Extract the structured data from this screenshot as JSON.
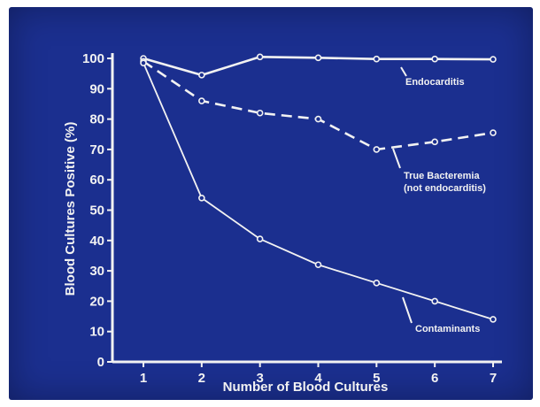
{
  "chart_data": {
    "type": "line",
    "title": "",
    "xlabel": "Number of Blood Cultures",
    "ylabel": "Blood Cultures Positive (%)",
    "x": [
      1,
      2,
      3,
      4,
      5,
      6,
      7
    ],
    "xlim": [
      1,
      7
    ],
    "ylim": [
      0,
      100
    ],
    "yticks": [
      "0",
      "10",
      "20",
      "30",
      "40",
      "50",
      "60",
      "70",
      "80",
      "90",
      "100"
    ],
    "xticks": [
      "1",
      "2",
      "3",
      "4",
      "5",
      "6",
      "7"
    ],
    "grid": false,
    "background": "#1b2f8f",
    "line_color": "#f2f2f2",
    "series": [
      {
        "name": "Endocarditis",
        "style": "solid",
        "values": [
          100,
          94.5,
          100.5,
          100.2,
          99.8,
          99.8,
          99.7
        ]
      },
      {
        "name": "True Bacteremia",
        "sublabel": "(not endocarditis)",
        "style": "dashed",
        "values": [
          99,
          86,
          82,
          80,
          70,
          72.5,
          75.5
        ]
      },
      {
        "name": "Contaminants",
        "style": "solid-thin",
        "values": [
          98.5,
          54,
          40.5,
          32,
          26,
          20,
          14
        ]
      }
    ]
  }
}
